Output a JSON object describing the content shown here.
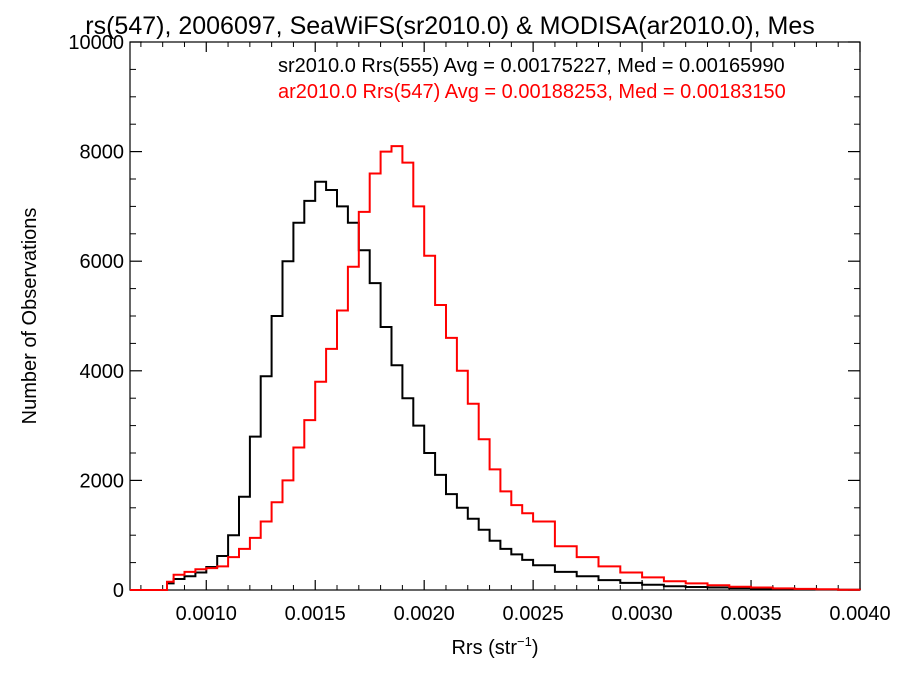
{
  "chart_data": {
    "type": "line",
    "title": "rs(547), 2006097, SeaWiFS(sr2010.0) & MODISA(ar2010.0), Mes",
    "xlabel_main": "Rrs (str",
    "xlabel_sup": "−1",
    "xlabel_end": ")",
    "ylabel": "Number of Observations",
    "xlim": [
      0.00065,
      0.004
    ],
    "ylim": [
      0,
      10000
    ],
    "x_ticks": [
      {
        "value": 0.001,
        "label": "0.0010"
      },
      {
        "value": 0.0015,
        "label": "0.0015"
      },
      {
        "value": 0.002,
        "label": "0.0020"
      },
      {
        "value": 0.0025,
        "label": "0.0025"
      },
      {
        "value": 0.003,
        "label": "0.0030"
      },
      {
        "value": 0.0035,
        "label": "0.0035"
      },
      {
        "value": 0.004,
        "label": "0.0040"
      }
    ],
    "y_ticks": [
      {
        "value": 0,
        "label": "0"
      },
      {
        "value": 2000,
        "label": "2000"
      },
      {
        "value": 4000,
        "label": "4000"
      },
      {
        "value": 6000,
        "label": "6000"
      },
      {
        "value": 8000,
        "label": "8000"
      },
      {
        "value": 10000,
        "label": "10000"
      }
    ],
    "legend_position": "top-right",
    "series": [
      {
        "legend": "sr2010.0 Rrs(555) Avg = 0.00175227, Med = 0.00165990",
        "color": "#000000",
        "x": [
          0.00065,
          0.0008,
          0.00082,
          0.00085,
          0.0009,
          0.00095,
          0.001,
          0.00105,
          0.0011,
          0.00115,
          0.0012,
          0.00125,
          0.0013,
          0.00135,
          0.0014,
          0.00145,
          0.0015,
          0.00155,
          0.0016,
          0.00165,
          0.0017,
          0.00175,
          0.0018,
          0.00185,
          0.0019,
          0.00195,
          0.002,
          0.00205,
          0.0021,
          0.00215,
          0.0022,
          0.00225,
          0.0023,
          0.00235,
          0.0024,
          0.00245,
          0.0025,
          0.0026,
          0.0027,
          0.0028,
          0.0029,
          0.003,
          0.0031,
          0.0032,
          0.0033,
          0.0034,
          0.0035,
          0.0036,
          0.0037,
          0.0038,
          0.0039,
          0.004
        ],
        "y": [
          0,
          0,
          120,
          200,
          250,
          320,
          420,
          620,
          1000,
          1700,
          2800,
          3900,
          5000,
          6000,
          6700,
          7100,
          7450,
          7300,
          7000,
          6700,
          6200,
          5600,
          4800,
          4100,
          3500,
          3000,
          2500,
          2100,
          1750,
          1500,
          1300,
          1100,
          900,
          750,
          650,
          550,
          450,
          330,
          250,
          180,
          130,
          95,
          70,
          55,
          45,
          35,
          28,
          22,
          15,
          10,
          5,
          3
        ]
      },
      {
        "legend": "ar2010.0 Rrs(547) Avg = 0.00188253, Med = 0.00183150",
        "color": "#ff0000",
        "x": [
          0.00065,
          0.0008,
          0.00082,
          0.00085,
          0.0009,
          0.00095,
          0.001,
          0.00105,
          0.0011,
          0.00115,
          0.0012,
          0.00125,
          0.0013,
          0.00135,
          0.0014,
          0.00145,
          0.0015,
          0.00155,
          0.0016,
          0.00165,
          0.0017,
          0.00175,
          0.0018,
          0.00185,
          0.0019,
          0.00195,
          0.002,
          0.00205,
          0.0021,
          0.00215,
          0.0022,
          0.00225,
          0.0023,
          0.00235,
          0.0024,
          0.00245,
          0.0025,
          0.0026,
          0.0027,
          0.0028,
          0.0029,
          0.003,
          0.0031,
          0.0032,
          0.0033,
          0.0034,
          0.0035,
          0.0036,
          0.0037,
          0.0038,
          0.0039,
          0.004
        ],
        "y": [
          0,
          0,
          150,
          280,
          330,
          380,
          400,
          430,
          600,
          750,
          950,
          1250,
          1600,
          2000,
          2600,
          3100,
          3800,
          4400,
          5100,
          5900,
          6900,
          7600,
          8000,
          8100,
          7800,
          7000,
          6100,
          5200,
          4600,
          4000,
          3400,
          2750,
          2200,
          1800,
          1550,
          1400,
          1250,
          800,
          600,
          430,
          320,
          230,
          160,
          120,
          85,
          60,
          45,
          30,
          20,
          12,
          6,
          3
        ]
      }
    ]
  }
}
